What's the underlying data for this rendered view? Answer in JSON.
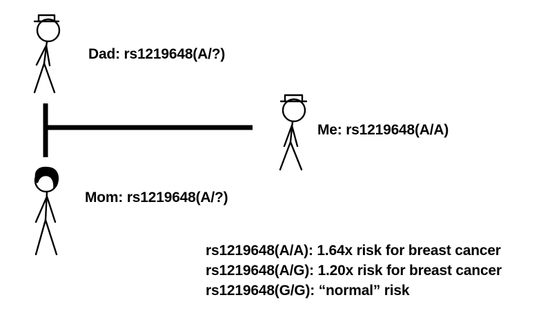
{
  "people": {
    "dad": {
      "label": "Dad: rs1219648(A/?)"
    },
    "me": {
      "label": "Me: rs1219648(A/A)"
    },
    "mom": {
      "label": "Mom: rs1219648(A/?)"
    }
  },
  "legend": [
    "rs1219648(A/A): 1.64x risk for breast cancer",
    "rs1219648(A/G): 1.20x risk for breast cancer",
    "rs1219648(G/G): “normal” risk"
  ]
}
